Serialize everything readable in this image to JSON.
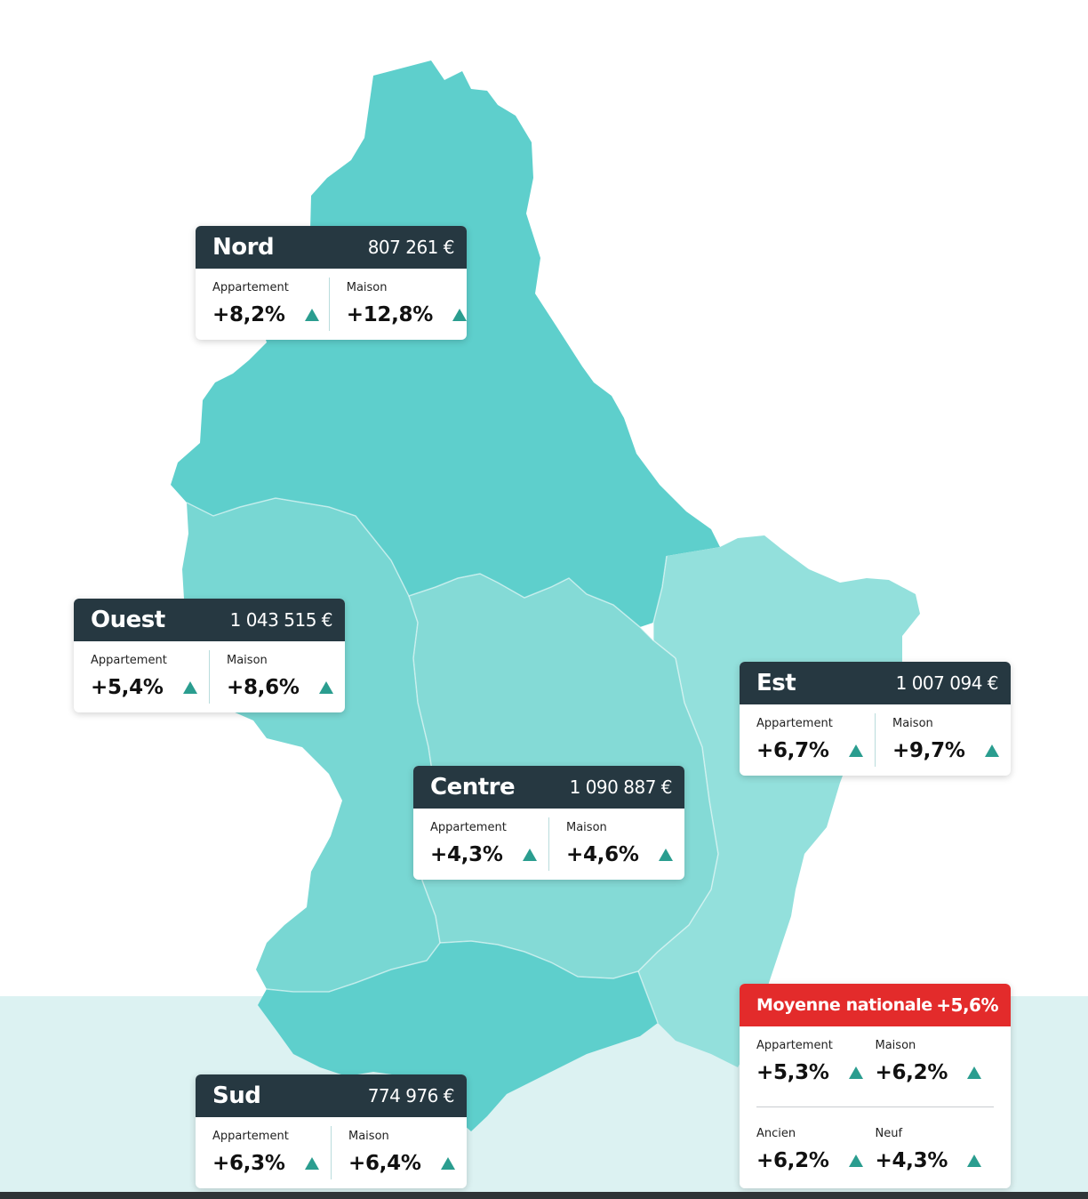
{
  "currency": "€",
  "colors": {
    "header_dark": "#263841",
    "header_national": "#e32b2b",
    "up_arrow": "#2a9d8f",
    "region_nord": "#5ecfcc",
    "region_ouest": "#78d7d3",
    "region_centre": "#84dad6",
    "region_est": "#93e0dc",
    "region_sud": "#5ecfcc"
  },
  "regions": [
    {
      "id": "nord",
      "name": "Nord",
      "price": "807 261 €",
      "appartement_label": "Appartement",
      "appartement": "+8,2%",
      "maison_label": "Maison",
      "maison": "+12,8%",
      "trend_icon": "up-triangle-icon"
    },
    {
      "id": "ouest",
      "name": "Ouest",
      "price": "1 043 515 €",
      "appartement_label": "Appartement",
      "appartement": "+5,4%",
      "maison_label": "Maison",
      "maison": "+8,6%",
      "trend_icon": "up-triangle-icon"
    },
    {
      "id": "est",
      "name": "Est",
      "price": "1 007 094 €",
      "appartement_label": "Appartement",
      "appartement": "+6,7%",
      "maison_label": "Maison",
      "maison": "+9,7%",
      "trend_icon": "up-triangle-icon"
    },
    {
      "id": "centre",
      "name": "Centre",
      "price": "1 090 887 €",
      "appartement_label": "Appartement",
      "appartement": "+4,3%",
      "maison_label": "Maison",
      "maison": "+4,6%",
      "trend_icon": "up-triangle-icon"
    },
    {
      "id": "sud",
      "name": "Sud",
      "price": "774 976 €",
      "appartement_label": "Appartement",
      "appartement": "+6,3%",
      "maison_label": "Maison",
      "maison": "+6,4%",
      "trend_icon": "up-triangle-icon"
    }
  ],
  "national": {
    "title": "Moyenne nationale",
    "value": "+5,6%",
    "appartement_label": "Appartement",
    "appartement": "+5,3%",
    "maison_label": "Maison",
    "maison": "+6,2%",
    "ancien_label": "Ancien",
    "ancien": "+6,2%",
    "neuf_label": "Neuf",
    "neuf": "+4,3%"
  }
}
